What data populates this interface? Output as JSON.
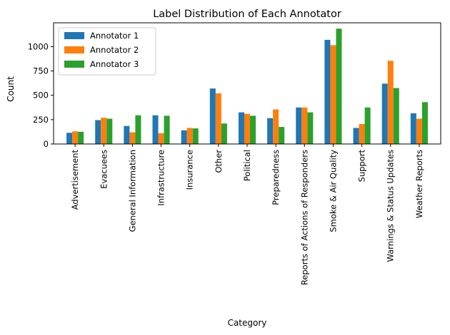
{
  "chart_data": {
    "type": "bar",
    "title": "Label Distribution of Each Annotator",
    "xlabel": "Category",
    "ylabel": "Count",
    "ylim": [
      0,
      1245
    ],
    "yticks": [
      0,
      250,
      500,
      750,
      1000
    ],
    "grid": false,
    "legend_position": "top-left",
    "categories": [
      "Advertisement",
      "Evacuees",
      "General Information",
      "Infrastructure",
      "Insurance",
      "Other",
      "Political",
      "Preparedness",
      "Reports of Actions of Responders",
      "Smoke & Air Quality",
      "Support",
      "Warnings & Status Updates",
      "Weather Reports"
    ],
    "series": [
      {
        "name": "Annotator 1",
        "color": "#1f77b4",
        "values": [
          115,
          245,
          185,
          295,
          140,
          570,
          325,
          265,
          375,
          1070,
          165,
          620,
          315
        ]
      },
      {
        "name": "Annotator 2",
        "color": "#ff7f0e",
        "values": [
          130,
          270,
          120,
          110,
          165,
          520,
          310,
          355,
          375,
          1015,
          205,
          855,
          260
        ]
      },
      {
        "name": "Annotator 3",
        "color": "#2ca02c",
        "values": [
          125,
          260,
          295,
          290,
          160,
          210,
          290,
          175,
          325,
          1185,
          375,
          575,
          430
        ]
      }
    ]
  }
}
